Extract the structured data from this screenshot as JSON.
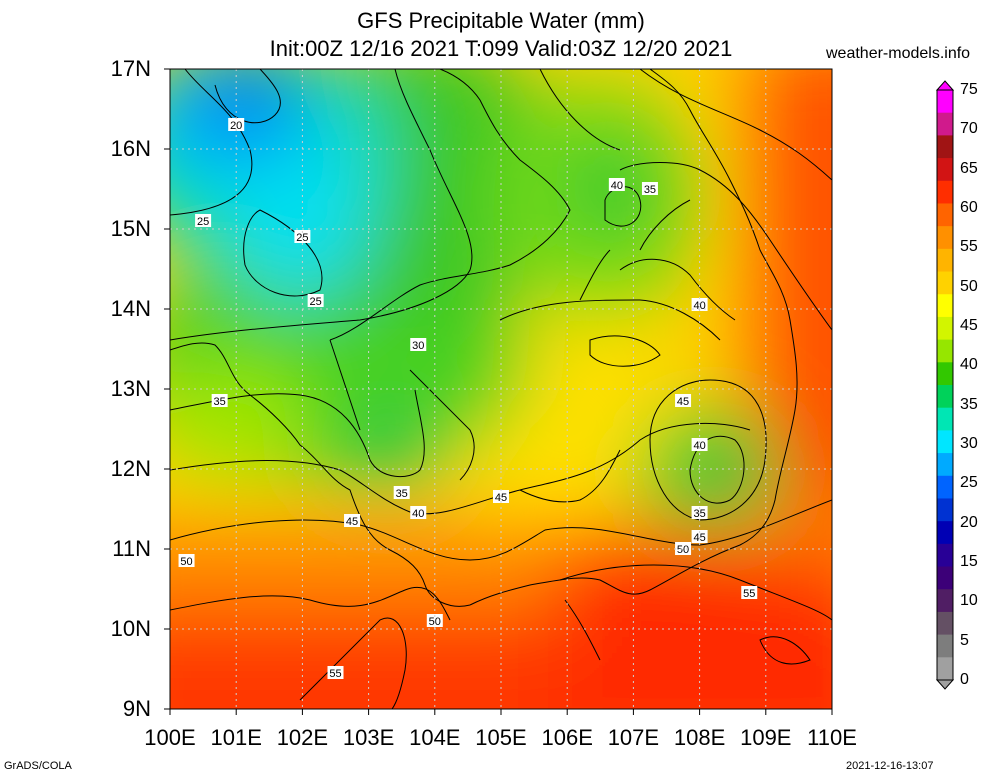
{
  "title": {
    "line1": "GFS Precipitable Water (mm)",
    "line2": "Init:00Z 12/16 2021 T:099 Valid:03Z 12/20 2021"
  },
  "site": "weather-models.info",
  "footer": {
    "left": "GrADS/COLA",
    "right": "2021-12-16-13:07"
  },
  "lat_labels": [
    "17N",
    "16N",
    "15N",
    "14N",
    "13N",
    "12N",
    "11N",
    "10N",
    "9N"
  ],
  "lon_labels": [
    "100E",
    "101E",
    "102E",
    "103E",
    "104E",
    "105E",
    "106E",
    "107E",
    "108E",
    "109E",
    "110E"
  ],
  "colorbar": {
    "labels": [
      "75",
      "70",
      "65",
      "60",
      "55",
      "50",
      "45",
      "40",
      "35",
      "30",
      "25",
      "20",
      "15",
      "10",
      "5",
      "0"
    ],
    "colors": [
      "#ff00ff",
      "#d01a8c",
      "#a01414",
      "#d21414",
      "#ff2e00",
      "#ff6400",
      "#ff9000",
      "#ffb400",
      "#ffd200",
      "#ffff00",
      "#d2f500",
      "#96e600",
      "#32c800",
      "#00d25a",
      "#00e6b4",
      "#00e6ff",
      "#00aaff",
      "#0064ff",
      "#0032d2",
      "#0000b4",
      "#280096",
      "#3c0078",
      "#501e64",
      "#645064",
      "#7d7d7d",
      "#a0a0a0"
    ]
  },
  "contour_labels": [
    {
      "text": "20",
      "lon": 101.0,
      "lat": 16.3
    },
    {
      "text": "25",
      "lon": 100.5,
      "lat": 15.1
    },
    {
      "text": "25",
      "lon": 102.0,
      "lat": 14.9
    },
    {
      "text": "25",
      "lon": 102.2,
      "lat": 14.1
    },
    {
      "text": "30",
      "lon": 103.75,
      "lat": 13.55
    },
    {
      "text": "35",
      "lon": 100.75,
      "lat": 12.85
    },
    {
      "text": "35",
      "lon": 103.5,
      "lat": 11.7
    },
    {
      "text": "40",
      "lon": 103.75,
      "lat": 11.45
    },
    {
      "text": "45",
      "lon": 102.75,
      "lat": 11.35
    },
    {
      "text": "45",
      "lon": 105.0,
      "lat": 11.65
    },
    {
      "text": "50",
      "lon": 100.25,
      "lat": 10.85
    },
    {
      "text": "50",
      "lon": 104.0,
      "lat": 10.1
    },
    {
      "text": "55",
      "lon": 102.5,
      "lat": 9.45
    },
    {
      "text": "40",
      "lon": 106.75,
      "lat": 15.55
    },
    {
      "text": "35",
      "lon": 107.25,
      "lat": 15.5
    },
    {
      "text": "40",
      "lon": 108.0,
      "lat": 14.05
    },
    {
      "text": "45",
      "lon": 107.75,
      "lat": 12.85
    },
    {
      "text": "40",
      "lon": 108.0,
      "lat": 12.3
    },
    {
      "text": "35",
      "lon": 108.0,
      "lat": 11.45
    },
    {
      "text": "45",
      "lon": 108.0,
      "lat": 11.15
    },
    {
      "text": "50",
      "lon": 107.75,
      "lat": 11.0
    },
    {
      "text": "55",
      "lon": 108.75,
      "lat": 10.45
    }
  ]
}
